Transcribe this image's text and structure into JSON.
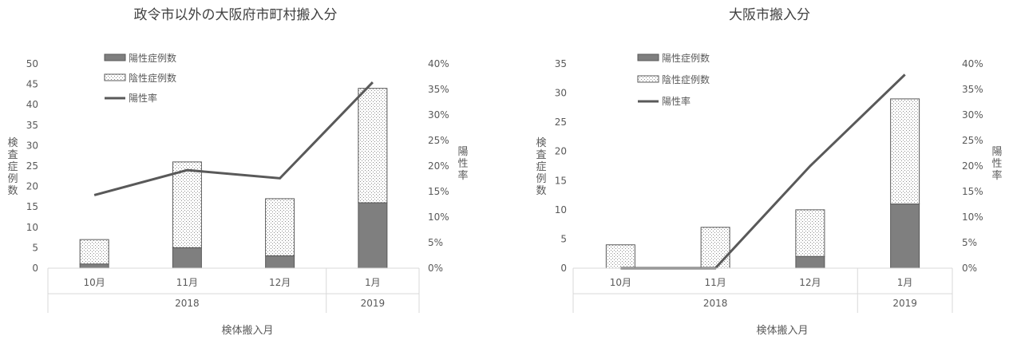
{
  "chart_data": [
    {
      "type": "bar",
      "stacked": true,
      "title": "政令市以外の大阪府市町村搬入分",
      "categories": [
        "10月",
        "11月",
        "12月",
        "1月"
      ],
      "groups": [
        {
          "label": "2018",
          "span": 3
        },
        {
          "label": "2019",
          "span": 1
        }
      ],
      "xlabel": "検体搬入月",
      "ylabel": "検査症例数",
      "y2label": "陽性率",
      "ylim": [
        0,
        50
      ],
      "yticks": [
        0,
        5,
        10,
        15,
        20,
        25,
        30,
        35,
        40,
        45,
        50
      ],
      "y2lim": [
        0,
        40
      ],
      "y2ticks": [
        "0%",
        "5%",
        "10%",
        "15%",
        "20%",
        "25%",
        "30%",
        "35%",
        "40%"
      ],
      "series": [
        {
          "name": "陽性症例数",
          "kind": "bar",
          "values": [
            1,
            5,
            3,
            16
          ],
          "color": "#7f7f7f"
        },
        {
          "name": "陰性症例数",
          "kind": "bar",
          "values": [
            6,
            21,
            14,
            28
          ],
          "color": "#ffffff"
        },
        {
          "name": "陽性率",
          "kind": "line",
          "axis": "right",
          "values": [
            14.3,
            19.2,
            17.6,
            36.4
          ],
          "color": "#595959"
        }
      ],
      "legend": "top-left",
      "grid": false
    },
    {
      "type": "bar",
      "stacked": true,
      "title": "大阪市搬入分",
      "categories": [
        "10月",
        "11月",
        "12月",
        "1月"
      ],
      "groups": [
        {
          "label": "2018",
          "span": 3
        },
        {
          "label": "2019",
          "span": 1
        }
      ],
      "xlabel": "検体搬入月",
      "ylabel": "検査症例数",
      "y2label": "陽性率",
      "ylim": [
        0,
        35
      ],
      "yticks": [
        0,
        5,
        10,
        15,
        20,
        25,
        30,
        35
      ],
      "y2lim": [
        0,
        40
      ],
      "y2ticks": [
        "0%",
        "5%",
        "10%",
        "15%",
        "20%",
        "25%",
        "30%",
        "35%",
        "40%"
      ],
      "series": [
        {
          "name": "陽性症例数",
          "kind": "bar",
          "values": [
            0,
            0,
            2,
            11
          ],
          "color": "#7f7f7f"
        },
        {
          "name": "陰性症例数",
          "kind": "bar",
          "values": [
            4,
            7,
            8,
            18
          ],
          "color": "#ffffff"
        },
        {
          "name": "陽性率",
          "kind": "line",
          "axis": "right",
          "values": [
            0,
            0,
            20,
            37.9
          ],
          "color": "#595959"
        }
      ],
      "legend": "top-left",
      "grid": false
    }
  ]
}
